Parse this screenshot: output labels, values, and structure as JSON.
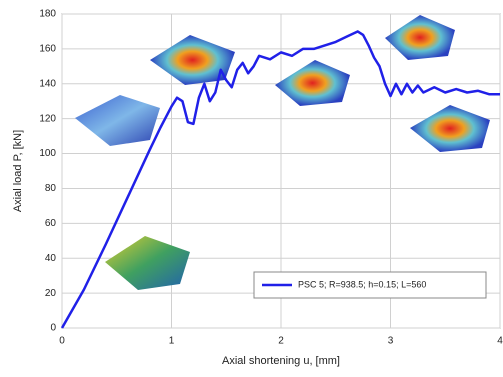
{
  "chart_data": {
    "type": "line",
    "x_label": "Axial shortening u, [mm]",
    "y_label": "Axial load P, [kN]",
    "x": [
      0,
      0.2,
      0.4,
      0.6,
      0.8,
      0.9,
      1.0,
      1.05,
      1.1,
      1.15,
      1.2,
      1.25,
      1.3,
      1.35,
      1.4,
      1.45,
      1.5,
      1.55,
      1.6,
      1.65,
      1.7,
      1.75,
      1.8,
      1.9,
      2.0,
      2.1,
      2.2,
      2.3,
      2.4,
      2.5,
      2.6,
      2.7,
      2.75,
      2.8,
      2.85,
      2.9,
      2.95,
      3.0,
      3.05,
      3.1,
      3.15,
      3.2,
      3.25,
      3.3,
      3.4,
      3.5,
      3.6,
      3.7,
      3.8,
      3.9,
      4.0
    ],
    "series": [
      {
        "name": "PSC 5; R=938.5; h=0.15; L=560",
        "color": "#2020e8",
        "values": [
          0,
          22,
          48,
          75,
          102,
          115,
          127,
          132,
          130,
          118,
          117,
          132,
          140,
          130,
          135,
          148,
          142,
          138,
          148,
          152,
          146,
          150,
          156,
          154,
          158,
          156,
          160,
          160,
          162,
          164,
          167,
          170,
          168,
          162,
          155,
          150,
          140,
          133,
          140,
          134,
          140,
          135,
          139,
          135,
          138,
          135,
          137,
          135,
          136,
          134,
          134
        ]
      }
    ],
    "xlim": [
      0,
      4
    ],
    "xticks": [
      0,
      1,
      2,
      3,
      4
    ],
    "ylim": [
      0,
      180
    ],
    "yticks": [
      0,
      20,
      40,
      60,
      80,
      100,
      120,
      140,
      160,
      180
    ],
    "grid": true,
    "legend": "lower right"
  }
}
